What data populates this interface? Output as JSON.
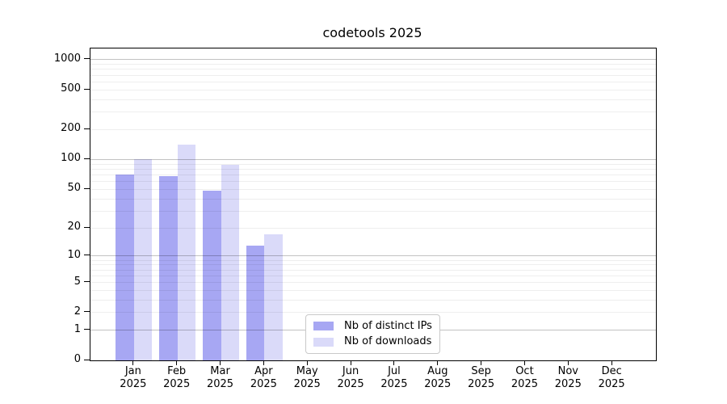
{
  "title": "codetools 2025",
  "chart_data": {
    "type": "bar",
    "title": "codetools 2025",
    "scale": "log10(x+1)",
    "grid": "on",
    "legend_position": "bottom-center",
    "categories": [
      "Jan",
      "Feb",
      "Mar",
      "Apr",
      "May",
      "Jun",
      "Jul",
      "Aug",
      "Sep",
      "Oct",
      "Nov",
      "Dec"
    ],
    "x_year_label": "2025",
    "series": [
      {
        "name": "Nb of distinct IPs",
        "color": "#a7a7f3",
        "values": [
          70,
          68,
          48,
          13,
          0,
          0,
          0,
          0,
          0,
          0,
          0,
          0
        ]
      },
      {
        "name": "Nb of downloads",
        "color": "#dadaf9",
        "values": [
          100,
          140,
          89,
          17,
          0,
          0,
          0,
          0,
          0,
          0,
          0,
          0
        ]
      }
    ],
    "y_ticks": [
      0,
      1,
      2,
      5,
      10,
      20,
      50,
      100,
      200,
      500,
      1000
    ],
    "y_tick_labels": [
      "0",
      "1",
      "2",
      "5",
      "10",
      "20",
      "50",
      "100",
      "200",
      "500",
      "1000"
    ],
    "y_major_gridlines": [
      1,
      10,
      100,
      1000
    ],
    "ylim": [
      0,
      1285
    ]
  },
  "legend": {
    "items": [
      {
        "label": "Nb of distinct IPs"
      },
      {
        "label": "Nb of downloads"
      }
    ]
  }
}
